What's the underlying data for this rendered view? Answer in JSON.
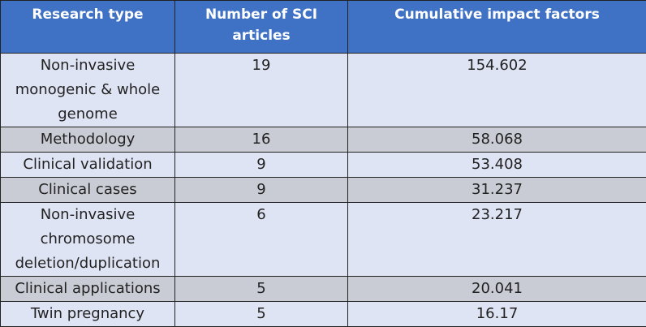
{
  "table": {
    "header": [
      "Research type",
      "Number of SCI articles",
      "Cumulative impact factors"
    ],
    "rows": [
      [
        "Non-invasive monogenic & whole genome",
        19,
        154.602
      ],
      [
        "Methodology",
        16,
        58.068
      ],
      [
        "Clinical validation",
        9,
        53.408
      ],
      [
        "Clinical cases",
        9,
        31.237
      ],
      [
        "Non-invasive chromosome deletion/duplication",
        6,
        23.217
      ],
      [
        "Clinical applications",
        5,
        20.041
      ],
      [
        "Twin pregnancy",
        5,
        16.17
      ]
    ]
  }
}
